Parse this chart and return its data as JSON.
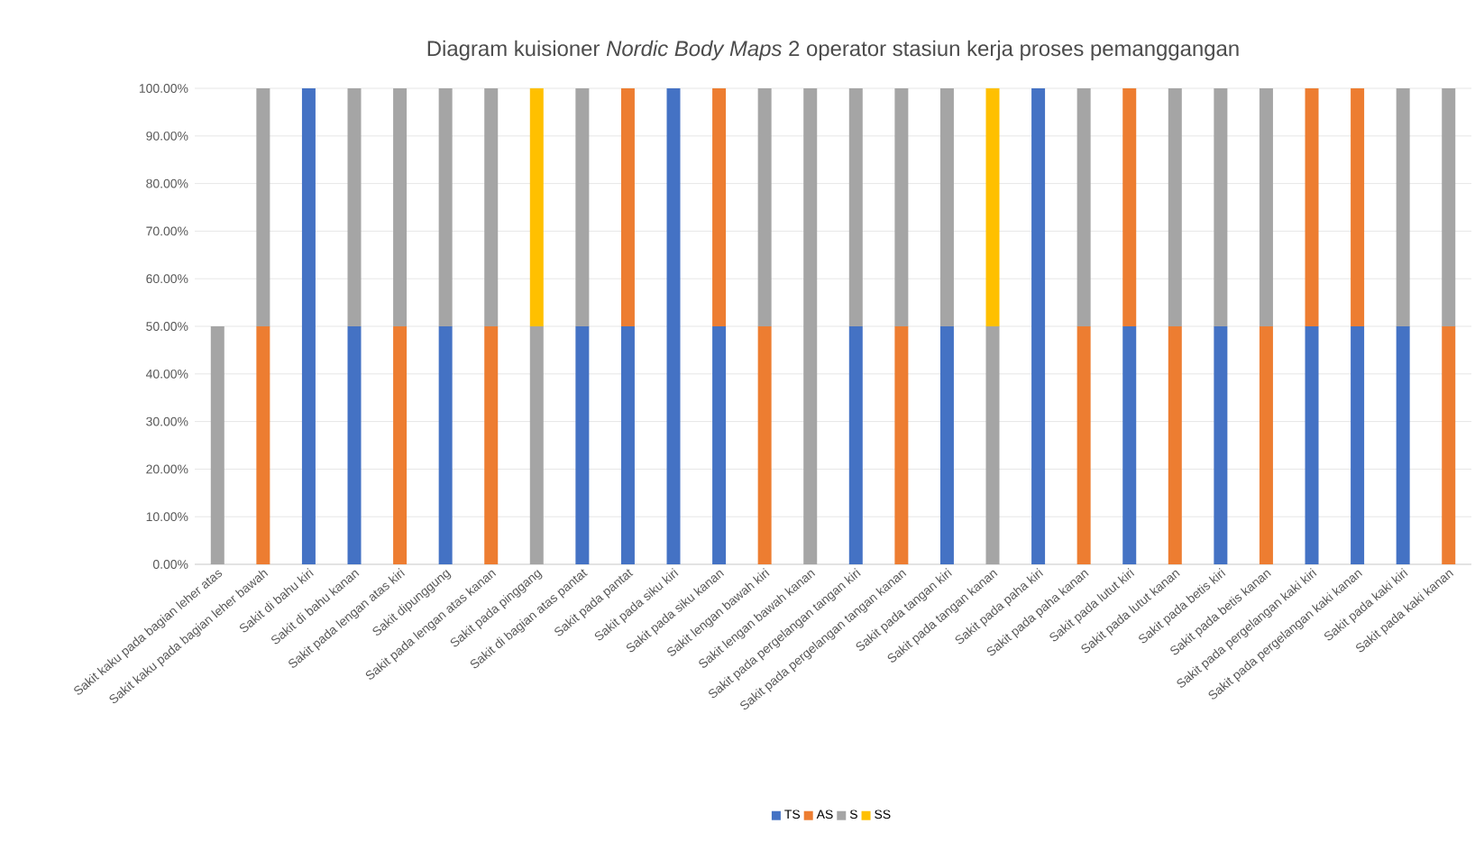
{
  "chart_data": {
    "type": "bar",
    "title": "Diagram kuisioner *Nordic Body Maps* 2 operator stasiun kerja proses pemanggangan",
    "categories": [
      "Sakit kaku pada bagian leher atas",
      "Sakit kaku pada bagian leher bawah",
      "Sakit di bahu kiri",
      "Sakit di bahu kanan",
      "Sakit pada lengan atas kiri",
      "Sakit dipunggung",
      "Sakit pada lengan atas kanan",
      "Sakit pada pinggang",
      "Sakit di bagian atas pantat",
      "Sakit pada pantat",
      "Sakit pada siku kiri",
      "Sakit pada siku kanan",
      "Sakit lengan bawah kiri",
      "Sakit lengan bawah kanan",
      "Sakit pada pergelangan tangan kiri",
      "Sakit pada pergelangan tangan kanan",
      "Sakit pada tangan kiri",
      "Sakit pada tangan kanan",
      "Sakit pada paha kiri",
      "Sakit pada paha kanan",
      "Sakit pada lutut kiri",
      "Sakit pada lutut kanan",
      "Sakit pada betis kiri",
      "Sakit pada betis kanan",
      "Sakit pada pergelangan kaki kiri",
      "Sakit pada pergelangan kaki kanan",
      "Sakit pada kaki kiri",
      "Sakit pada kaki kanan"
    ],
    "stacked": true,
    "series": [
      {
        "name": "TS",
        "color": "#4472c4",
        "values": [
          0,
          0,
          100,
          50,
          0,
          50,
          0,
          0,
          50,
          50,
          100,
          50,
          0,
          0,
          50,
          0,
          50,
          0,
          100,
          0,
          50,
          0,
          50,
          0,
          50,
          50,
          50,
          0
        ]
      },
      {
        "name": "AS",
        "color": "#ed7d31",
        "values": [
          0,
          50,
          0,
          0,
          50,
          0,
          50,
          0,
          0,
          50,
          0,
          50,
          50,
          0,
          0,
          50,
          0,
          0,
          0,
          50,
          50,
          50,
          0,
          50,
          50,
          50,
          0,
          50
        ]
      },
      {
        "name": "S",
        "color": "#a5a5a5",
        "values": [
          50,
          50,
          0,
          50,
          50,
          50,
          50,
          50,
          50,
          0,
          0,
          0,
          50,
          100,
          50,
          50,
          50,
          50,
          0,
          50,
          0,
          50,
          50,
          50,
          0,
          0,
          50,
          50
        ]
      },
      {
        "name": "SS",
        "color": "#ffc000",
        "values": [
          0,
          0,
          0,
          0,
          0,
          0,
          0,
          50,
          0,
          0,
          0,
          0,
          0,
          0,
          0,
          0,
          0,
          50,
          0,
          0,
          0,
          0,
          0,
          0,
          0,
          0,
          0,
          0
        ]
      }
    ],
    "ylim": [
      0,
      100
    ],
    "yticks": [
      {
        "value": 0,
        "label": "0.00%"
      },
      {
        "value": 10,
        "label": "10.00%"
      },
      {
        "value": 20,
        "label": "20.00%"
      },
      {
        "value": 30,
        "label": "30.00%"
      },
      {
        "value": 40,
        "label": "40.00%"
      },
      {
        "value": 50,
        "label": "50.00%"
      },
      {
        "value": 60,
        "label": "60.00%"
      },
      {
        "value": 70,
        "label": "70.00%"
      },
      {
        "value": 80,
        "label": "80.00%"
      },
      {
        "value": 90,
        "label": "90.00%"
      },
      {
        "value": 100,
        "label": "100.00%"
      }
    ],
    "grid": "y",
    "legend": "bottom"
  }
}
